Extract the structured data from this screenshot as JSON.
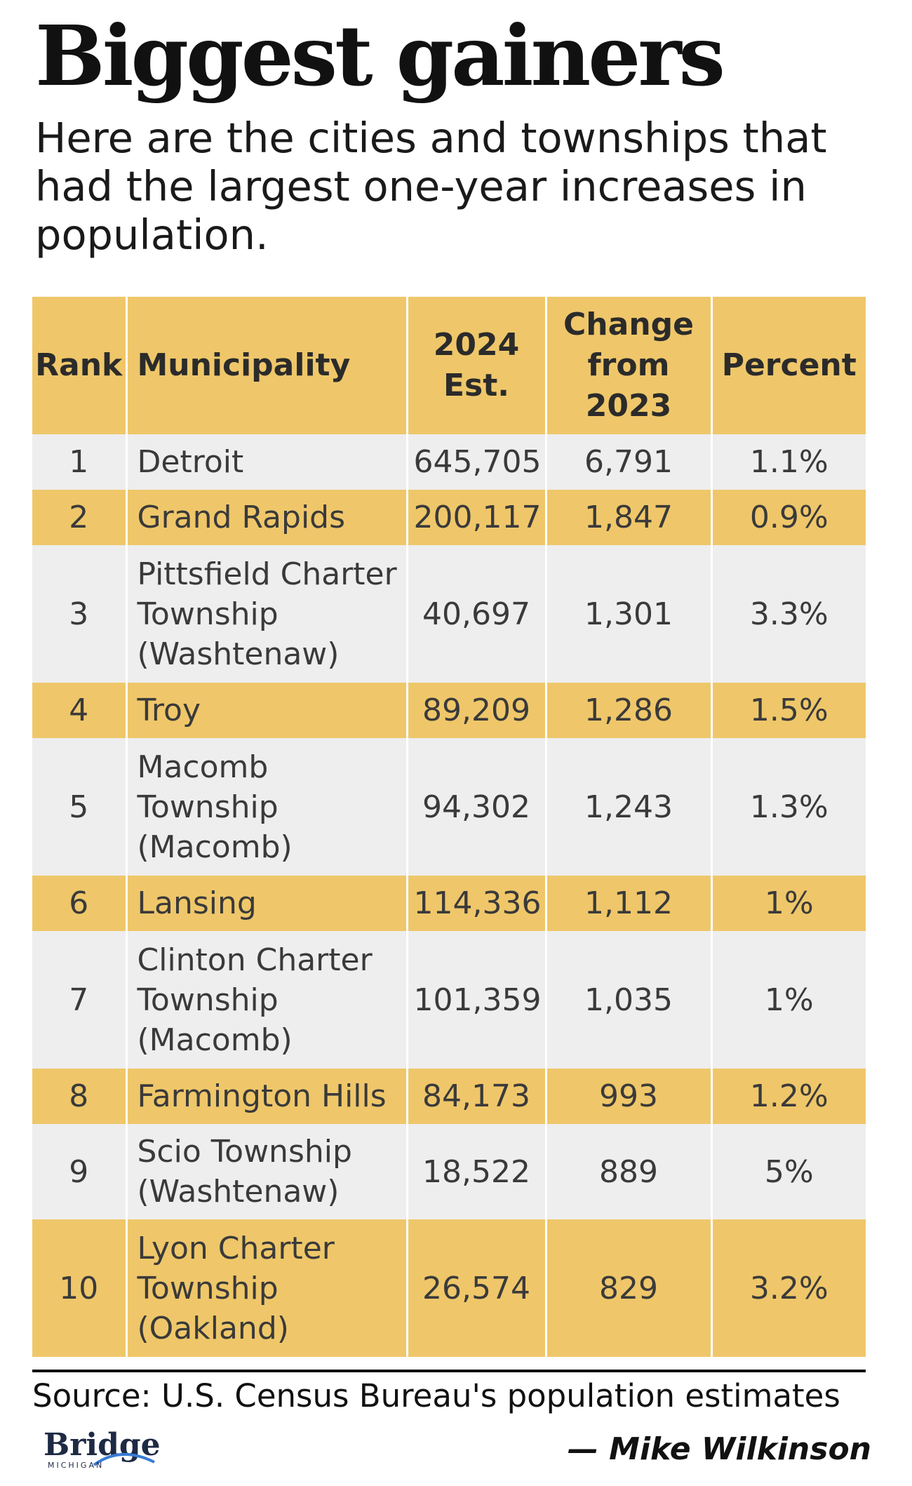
{
  "title": "Biggest gainers",
  "subtitle": "Here are the cities and townships that had the largest one-year increases in population.",
  "table": {
    "headers": {
      "rank": "Rank",
      "municipality": "Municipality",
      "estimate": "2024 Est.",
      "change": "Change from 2023",
      "percent": "Percent"
    },
    "rows": [
      {
        "rank": "1",
        "municipality": "Detroit",
        "estimate": "645,705",
        "change": "6,791",
        "percent": "1.1%"
      },
      {
        "rank": "2",
        "municipality": "Grand Rapids",
        "estimate": "200,117",
        "change": "1,847",
        "percent": "0.9%"
      },
      {
        "rank": "3",
        "municipality": "Pittsfield Charter Township (Washtenaw)",
        "estimate": "40,697",
        "change": "1,301",
        "percent": "3.3%"
      },
      {
        "rank": "4",
        "municipality": "Troy",
        "estimate": "89,209",
        "change": "1,286",
        "percent": "1.5%"
      },
      {
        "rank": "5",
        "municipality": "Macomb Township (Macomb)",
        "estimate": "94,302",
        "change": "1,243",
        "percent": "1.3%"
      },
      {
        "rank": "6",
        "municipality": "Lansing",
        "estimate": "114,336",
        "change": "1,112",
        "percent": "1%"
      },
      {
        "rank": "7",
        "municipality": "Clinton Charter Township (Macomb)",
        "estimate": "101,359",
        "change": "1,035",
        "percent": "1%"
      },
      {
        "rank": "8",
        "municipality": "Farmington Hills",
        "estimate": "84,173",
        "change": "993",
        "percent": "1.2%"
      },
      {
        "rank": "9",
        "municipality": "Scio Township (Washtenaw)",
        "estimate": "18,522",
        "change": "889",
        "percent": "5%"
      },
      {
        "rank": "10",
        "municipality": "Lyon Charter Township (Oakland)",
        "estimate": "26,574",
        "change": "829",
        "percent": "3.2%"
      }
    ]
  },
  "source": "Source: U.S. Census Bureau's population estimates",
  "logo": {
    "word": "Bridge",
    "sub": "MICHIGAN"
  },
  "byline": "— Mike Wilkinson",
  "colors": {
    "gold": "#EFC76A",
    "light": "#EEEEEE"
  }
}
